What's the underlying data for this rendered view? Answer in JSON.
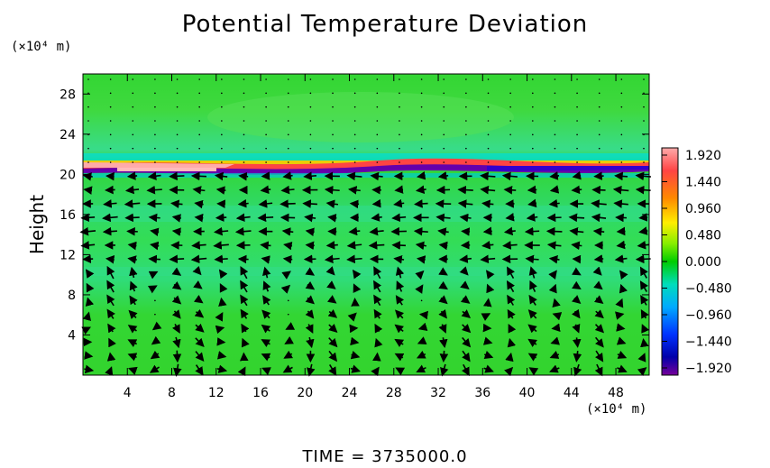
{
  "title": "Potential Temperature Deviation",
  "time_label": "TIME = 3735000.0",
  "y_unit": "(×10⁴ m)",
  "x_unit": "(×10⁴ m)",
  "y_axis_label": "Height",
  "colors": {
    "background_field": "#33dd33",
    "band_hot": "#ff8888",
    "band_cold": "#6600aa",
    "arrow": "#000000"
  },
  "chart_data": {
    "type": "heatmap",
    "title": "Potential Temperature Deviation",
    "xlabel": "",
    "ylabel": "Height",
    "x_unit": "(×10⁴ m)",
    "y_unit": "(×10⁴ m)",
    "xlim": [
      0,
      51
    ],
    "ylim": [
      0,
      30
    ],
    "x_ticks": [
      "4",
      "8",
      "12",
      "16",
      "20",
      "24",
      "28",
      "32",
      "36",
      "40",
      "44",
      "48"
    ],
    "y_ticks": [
      "4",
      "8",
      "12",
      "16",
      "20",
      "24",
      "28"
    ],
    "x_tick_values": [
      4,
      8,
      12,
      16,
      20,
      24,
      28,
      32,
      36,
      40,
      44,
      48
    ],
    "y_tick_values": [
      4,
      8,
      12,
      16,
      20,
      24,
      28
    ],
    "colorbar": {
      "labels": [
        "1.920",
        "1.440",
        "0.960",
        "0.480",
        "0.000",
        "−0.480",
        "−0.960",
        "−1.440",
        "−1.920"
      ],
      "values": [
        1.92,
        1.44,
        0.96,
        0.48,
        0.0,
        -0.48,
        -0.96,
        -1.44,
        -1.92
      ],
      "colors": [
        "#ff9999",
        "#ff3333",
        "#ff8800",
        "#ffff00",
        "#00cc00",
        "#00dddd",
        "#0066ff",
        "#0000cc",
        "#660099"
      ]
    },
    "overlay": "wind vectors (arrows)",
    "time": "3735000.0"
  }
}
